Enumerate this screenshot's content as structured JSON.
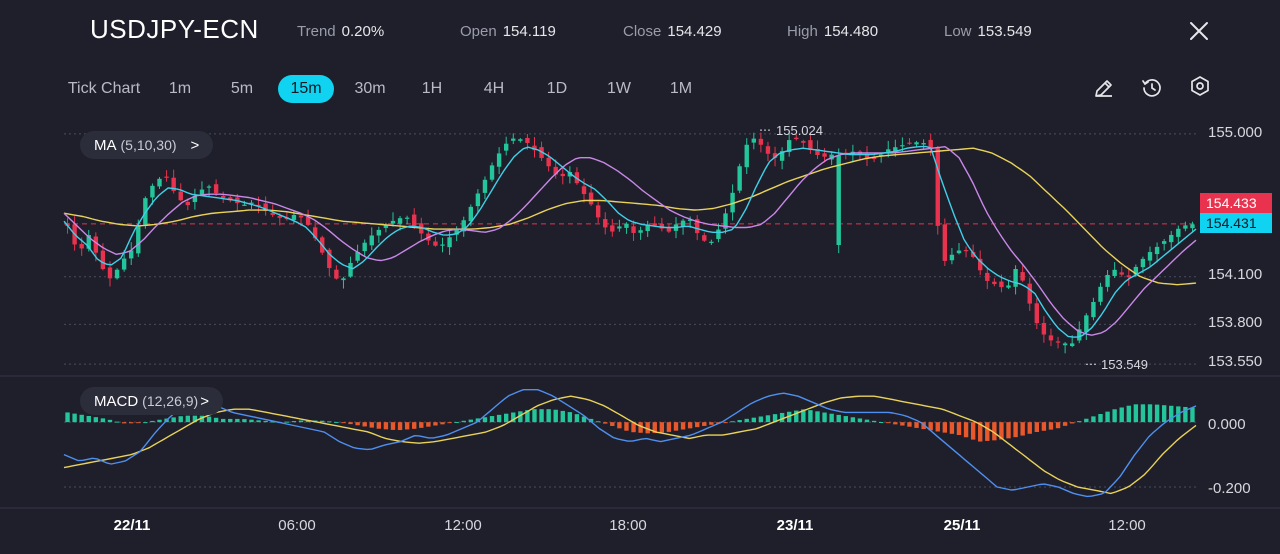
{
  "header": {
    "symbol": "USDJPY-ECN",
    "stats": [
      {
        "label": "Trend",
        "value": "0.20%"
      },
      {
        "label": "Open",
        "value": "154.119"
      },
      {
        "label": "Close",
        "value": "154.429"
      },
      {
        "label": "High",
        "value": "154.480"
      },
      {
        "label": "Low",
        "value": "153.549"
      }
    ]
  },
  "toolbar": {
    "timeframes": [
      "Tick Chart",
      "1m",
      "5m",
      "15m",
      "30m",
      "1H",
      "4H",
      "1D",
      "1W",
      "1M"
    ],
    "active": "15m",
    "tools": [
      "pencil-icon",
      "clock-icon",
      "settings-hexagon-icon"
    ]
  },
  "indicators": {
    "ma": {
      "name": "MA",
      "params": "(5,10,30)",
      "chevron": ">"
    },
    "macd": {
      "name": "MACD",
      "params": "(12,26,9)",
      "chevron": ">"
    }
  },
  "colors": {
    "background": "#1e1f2a",
    "up": "#23c59a",
    "down": "#e9334e",
    "accent": "#0fd3f0",
    "ma5": "#3fd0e8",
    "ma10": "#c987e8",
    "ma30": "#e9d25a",
    "macd_line": "#4f8ff0",
    "signal_line": "#e9d25a",
    "hist_pos": "#23c59a",
    "hist_neg": "#e8582b"
  },
  "chart_data": {
    "type": "candlestick",
    "price_axis": {
      "ticks": [
        "155.000",
        "154.100",
        "153.800",
        "153.550"
      ],
      "range": [
        153.5,
        155.1
      ]
    },
    "macd_axis": {
      "ticks": [
        "0.000",
        "-0.200"
      ],
      "range": [
        -0.24,
        0.13
      ]
    },
    "x_ticks": [
      "22/11",
      "06:00",
      "12:00",
      "18:00",
      "23/11",
      "25/11",
      "12:00"
    ],
    "x_ticks_bold": [
      "22/11",
      "23/11",
      "25/11"
    ],
    "price_tags": [
      {
        "value": "154.433",
        "kind": "bid"
      },
      {
        "value": "154.431",
        "kind": "last"
      }
    ],
    "annotations": [
      {
        "text": "155.024",
        "kind": "high"
      },
      {
        "text": "153.549",
        "kind": "low"
      }
    ],
    "close_path": [
      154.42,
      154.24,
      154.37,
      154.17,
      154.08,
      154.2,
      154.28,
      154.58,
      154.7,
      154.74,
      154.6,
      154.55,
      154.64,
      154.67,
      154.6,
      154.58,
      154.55,
      154.57,
      154.52,
      154.48,
      154.46,
      154.5,
      154.43,
      154.3,
      154.15,
      154.05,
      154.2,
      154.3,
      154.37,
      154.42,
      154.46,
      154.48,
      154.4,
      154.33,
      154.28,
      154.35,
      154.42,
      154.55,
      154.68,
      154.82,
      154.93,
      154.98,
      154.95,
      154.88,
      154.8,
      154.72,
      154.76,
      154.65,
      154.55,
      154.42,
      154.38,
      154.45,
      154.36,
      154.43,
      154.42,
      154.38,
      154.45,
      154.46,
      154.33,
      154.32,
      154.45,
      154.65,
      154.92,
      154.98,
      154.88,
      154.84,
      154.96,
      154.97,
      154.9,
      154.85,
      154.87,
      154.86,
      154.89,
      154.85,
      154.84,
      154.9,
      154.92,
      154.94,
      154.95,
      154.93,
      154.18,
      154.24,
      154.28,
      154.22,
      154.08,
      154.05,
      154.02,
      154.18,
      153.95,
      153.76,
      153.7,
      153.68,
      153.68,
      153.82,
      153.95,
      154.1,
      154.15,
      154.08,
      154.18,
      154.25,
      154.3,
      154.36,
      154.42,
      154.43
    ],
    "ma5_path": [
      154.45,
      154.36,
      154.3,
      154.2,
      154.17,
      154.22,
      154.38,
      154.5,
      154.6,
      154.66,
      154.65,
      154.62,
      154.61,
      154.6,
      154.59,
      154.58,
      154.56,
      154.54,
      154.51,
      154.48,
      154.45,
      154.41,
      154.33,
      154.24,
      154.18,
      154.15,
      154.2,
      154.28,
      154.35,
      154.4,
      154.42,
      154.41,
      154.38,
      154.36,
      154.37,
      154.42,
      154.52,
      154.64,
      154.76,
      154.86,
      154.92,
      154.9,
      154.86,
      154.8,
      154.74,
      154.69,
      154.65,
      154.58,
      154.5,
      154.45,
      154.43,
      154.42,
      154.41,
      154.41,
      154.42,
      154.4,
      154.38,
      154.38,
      154.4,
      154.52,
      154.68,
      154.82,
      154.88,
      154.9,
      154.91,
      154.9,
      154.89,
      154.88,
      154.87,
      154.87,
      154.87,
      154.88,
      154.89,
      154.91,
      154.92,
      154.92,
      154.7,
      154.5,
      154.32,
      154.22,
      154.15,
      154.1,
      154.07,
      154.05,
      154.0,
      153.88,
      153.78,
      153.72,
      153.72,
      153.78,
      153.88,
      154.0,
      154.08,
      154.12,
      154.16,
      154.22,
      154.28,
      154.34,
      154.4
    ],
    "ma10_path": [
      154.5,
      154.42,
      154.34,
      154.28,
      154.24,
      154.26,
      154.33,
      154.42,
      154.5,
      154.57,
      154.61,
      154.62,
      154.62,
      154.61,
      154.6,
      154.58,
      154.56,
      154.53,
      154.5,
      154.46,
      154.4,
      154.33,
      154.27,
      154.22,
      154.2,
      154.22,
      154.27,
      154.32,
      154.36,
      154.39,
      154.4,
      154.39,
      154.38,
      154.4,
      154.46,
      154.54,
      154.63,
      154.72,
      154.8,
      154.85,
      154.85,
      154.82,
      154.77,
      154.71,
      154.64,
      154.58,
      154.52,
      154.48,
      154.45,
      154.43,
      154.42,
      154.41,
      154.41,
      154.43,
      154.5,
      154.6,
      154.7,
      154.78,
      154.84,
      154.87,
      154.88,
      154.88,
      154.88,
      154.88,
      154.89,
      154.9,
      154.91,
      154.92,
      154.85,
      154.7,
      154.52,
      154.38,
      154.26,
      154.16,
      154.05,
      153.93,
      153.83,
      153.76,
      153.73,
      153.75,
      153.82,
      153.92,
      154.02,
      154.1,
      154.18,
      154.26,
      154.33
    ],
    "ma30_path": [
      154.5,
      154.48,
      154.45,
      154.43,
      154.42,
      154.43,
      154.45,
      154.48,
      154.5,
      154.51,
      154.52,
      154.52,
      154.51,
      154.49,
      154.47,
      154.45,
      154.44,
      154.43,
      154.42,
      154.41,
      154.4,
      154.4,
      154.4,
      154.41,
      154.43,
      154.47,
      154.52,
      154.56,
      154.58,
      154.58,
      154.57,
      154.56,
      154.55,
      154.53,
      154.52,
      154.53,
      154.56,
      154.6,
      154.65,
      154.7,
      154.74,
      154.78,
      154.81,
      154.84,
      154.86,
      154.87,
      154.88,
      154.89,
      154.9,
      154.91,
      154.88,
      154.82,
      154.74,
      154.63,
      154.52,
      154.4,
      154.28,
      154.18,
      154.1,
      154.06,
      154.05,
      154.06
    ],
    "macd_line_path": [
      -0.1,
      -0.12,
      -0.11,
      -0.13,
      -0.12,
      -0.09,
      -0.03,
      0.02,
      0.05,
      0.06,
      0.05,
      0.03,
      0.02,
      0.01,
      0.0,
      -0.01,
      -0.02,
      -0.03,
      -0.06,
      -0.08,
      -0.085,
      -0.07,
      -0.06,
      -0.04,
      -0.05,
      -0.04,
      -0.02,
      0.0,
      0.04,
      0.08,
      0.1,
      0.1,
      0.08,
      0.05,
      0.02,
      -0.02,
      -0.05,
      -0.06,
      -0.05,
      -0.06,
      -0.05,
      -0.04,
      -0.02,
      0.0,
      0.03,
      0.06,
      0.08,
      0.09,
      0.08,
      0.06,
      0.04,
      0.03,
      0.03,
      0.03,
      0.03,
      0.02,
      0.0,
      -0.04,
      -0.08,
      -0.12,
      -0.16,
      -0.2,
      -0.21,
      -0.2,
      -0.19,
      -0.2,
      -0.22,
      -0.23,
      -0.22,
      -0.17,
      -0.1,
      -0.04,
      0.0,
      0.03,
      0.05
    ],
    "signal_line_path": [
      -0.14,
      -0.13,
      -0.12,
      -0.11,
      -0.1,
      -0.08,
      -0.05,
      -0.02,
      0.01,
      0.03,
      0.04,
      0.04,
      0.03,
      0.02,
      0.01,
      0.0,
      -0.01,
      -0.02,
      -0.03,
      -0.05,
      -0.06,
      -0.065,
      -0.06,
      -0.05,
      -0.04,
      -0.03,
      -0.01,
      0.02,
      0.05,
      0.07,
      0.08,
      0.07,
      0.05,
      0.02,
      -0.01,
      -0.03,
      -0.04,
      -0.05,
      -0.04,
      -0.04,
      -0.03,
      -0.02,
      0.0,
      0.02,
      0.04,
      0.06,
      0.075,
      0.08,
      0.08,
      0.07,
      0.06,
      0.05,
      0.04,
      0.02,
      0.0,
      -0.03,
      -0.07,
      -0.11,
      -0.15,
      -0.18,
      -0.2,
      -0.21,
      -0.22,
      -0.2,
      -0.16,
      -0.1,
      -0.05,
      -0.01
    ],
    "histogram_path": [
      0.03,
      0.02,
      0.01,
      -0.005,
      0.0,
      0.01,
      0.02,
      0.02,
      0.01,
      0.01,
      0.005,
      0.0,
      0.005,
      0.005,
      0.0,
      -0.01,
      -0.02,
      -0.025,
      -0.02,
      -0.01,
      0.0,
      0.01,
      0.02,
      0.03,
      0.04,
      0.04,
      0.03,
      0.01,
      -0.01,
      -0.03,
      -0.035,
      -0.03,
      -0.02,
      -0.01,
      0.0,
      0.01,
      0.02,
      0.03,
      0.04,
      0.03,
      0.02,
      0.01,
      0.0,
      -0.01,
      -0.02,
      -0.03,
      -0.04,
      -0.06,
      -0.055,
      -0.045,
      -0.03,
      -0.02,
      0.0,
      0.02,
      0.04,
      0.055,
      0.055,
      0.05,
      0.045
    ]
  }
}
